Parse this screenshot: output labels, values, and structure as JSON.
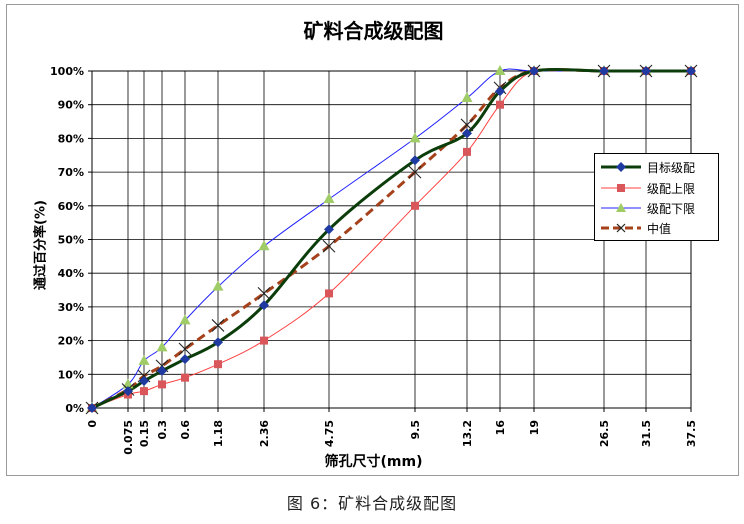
{
  "chart_title": "矿料合成级配图",
  "caption": "图 6：矿料合成级配图",
  "chart_data": {
    "type": "line",
    "title": "矿料合成级配图",
    "xlabel": "筛孔尺寸(mm)",
    "ylabel": "通过百分率(%)",
    "x": [
      "0",
      "0.075",
      "0.15",
      "0.3",
      "0.6",
      "1.18",
      "2.36",
      "4.75",
      "9.5",
      "13.2",
      "16",
      "19",
      "26.5",
      "31.5",
      "37.5"
    ],
    "ylim": [
      0,
      100
    ],
    "yticks": [
      "0%",
      "10%",
      "20%",
      "30%",
      "40%",
      "50%",
      "60%",
      "70%",
      "80%",
      "90%",
      "100%"
    ],
    "grid": true,
    "legend_position": "right",
    "series": [
      {
        "name": "目标级配",
        "color": "#0b3d0b",
        "marker": "diamond",
        "marker_color": "#1f3aa0",
        "style": "solid-thick",
        "values": [
          0,
          5,
          8,
          11,
          14.5,
          19.5,
          30.5,
          53,
          73.5,
          81.5,
          94,
          100,
          100,
          100,
          100
        ]
      },
      {
        "name": "级配上限",
        "color": "#ff4040",
        "marker": "square",
        "marker_color": "#d9575a",
        "style": "solid-thin",
        "values": [
          0,
          4,
          5,
          7,
          9,
          13,
          20,
          34,
          60,
          76,
          90,
          100,
          100,
          100,
          100
        ]
      },
      {
        "name": "级配下限",
        "color": "#2020ff",
        "marker": "triangle",
        "marker_color": "#9fcc66",
        "style": "solid-thin",
        "values": [
          0,
          7,
          14,
          18,
          26,
          36,
          48,
          62,
          80,
          92,
          100,
          100,
          100,
          100,
          100
        ]
      },
      {
        "name": "中值",
        "color": "#a5421c",
        "marker": "x",
        "marker_color": "#222222",
        "style": "dashed-thick",
        "values": [
          0,
          5.5,
          9.5,
          12.5,
          17.5,
          24.5,
          34,
          48,
          70,
          84,
          95,
          100,
          100,
          100,
          100
        ]
      }
    ]
  }
}
